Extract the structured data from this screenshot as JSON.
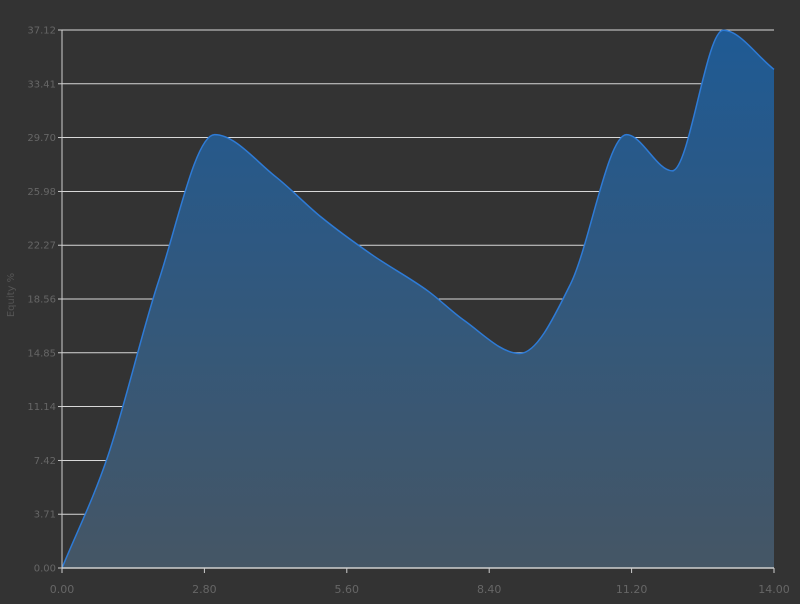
{
  "chart_data": {
    "type": "area",
    "ylabel": "Equity %",
    "xlabel": "",
    "title": "",
    "xlim": [
      0,
      14
    ],
    "ylim": [
      0,
      37.12
    ],
    "x_ticks": [
      0,
      2.8,
      5.6,
      8.4,
      11.2,
      14
    ],
    "x_tick_labels": [
      "0.00",
      "2.80",
      "5.60",
      "8.40",
      "11.20",
      "14.00"
    ],
    "y_ticks": [
      0,
      3.71,
      7.42,
      11.14,
      14.85,
      18.56,
      22.27,
      25.98,
      29.7,
      33.41,
      37.12
    ],
    "y_tick_labels": [
      "0.00",
      "3.71",
      "7.42",
      "11.14",
      "14.85",
      "18.56",
      "22.27",
      "25.98",
      "29.70",
      "33.41",
      "37.12"
    ],
    "grid": true,
    "series": [
      {
        "x": [
          0,
          0.9,
          1.9,
          3.0,
          4.2,
          5.1,
          6.1,
          7.2,
          7.9,
          9.0,
          10.0,
          11.1,
          12.0,
          13.0,
          14.0
        ],
        "y": [
          0,
          7.7,
          19.8,
          29.9,
          27.0,
          24.2,
          21.6,
          19.1,
          17.1,
          14.8,
          19.6,
          29.9,
          27.4,
          37.1,
          34.4
        ]
      }
    ],
    "colors": {
      "background": "#333333",
      "line": "#2e7bd6",
      "fill_top": "#1f5a94",
      "fill_bottom": "#455665",
      "grid": "#d8d8d8",
      "axis": "#cfcfcf",
      "tick_text": "#666666"
    }
  }
}
